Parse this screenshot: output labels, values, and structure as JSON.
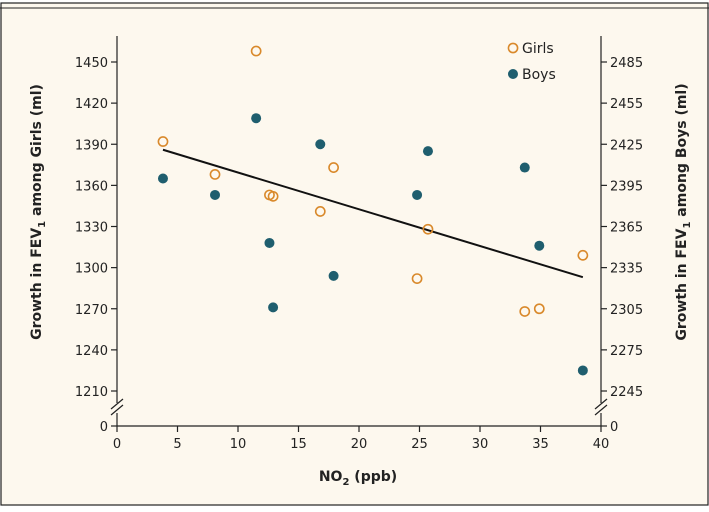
{
  "colors": {
    "background": "#fdf8ee",
    "girls": "#d9892b",
    "boys": "#1f5e6e",
    "line": "#111111",
    "axis": "#222222"
  },
  "chart_data": {
    "type": "scatter",
    "xlabel_main": "NO",
    "xlabel_sub": "2",
    "xlabel_rest": " (ppb)",
    "ylabel_left_main": "Growth in FEV",
    "ylabel_left_sub": "1",
    "ylabel_left_rest": " among Girls (ml)",
    "ylabel_right_main": "Growth in FEV",
    "ylabel_right_sub": "1",
    "ylabel_right_rest": " among Boys (ml)",
    "xlim": [
      0,
      40
    ],
    "x_ticks": [
      "0",
      "5",
      "10",
      "15",
      "20",
      "25",
      "30",
      "35",
      "40"
    ],
    "ylim_left": [
      1210,
      1450
    ],
    "y_ticks_left": [
      "1210",
      "1240",
      "1270",
      "1300",
      "1330",
      "1360",
      "1390",
      "1420",
      "1450"
    ],
    "ylim_right": [
      2245,
      2485
    ],
    "y_ticks_right": [
      "2245",
      "2275",
      "2305",
      "2335",
      "2365",
      "2395",
      "2425",
      "2455",
      "2485"
    ],
    "axis_break_label_left": "0",
    "axis_break_label_right": "0",
    "legend_position": "top-right",
    "series": [
      {
        "name": "Girls",
        "marker": "open-circle",
        "axis": "left",
        "points": [
          {
            "x": 3.8,
            "y": 1392
          },
          {
            "x": 8.1,
            "y": 1368
          },
          {
            "x": 11.5,
            "y": 1458
          },
          {
            "x": 12.6,
            "y": 1353
          },
          {
            "x": 12.9,
            "y": 1352
          },
          {
            "x": 16.8,
            "y": 1341
          },
          {
            "x": 17.9,
            "y": 1373
          },
          {
            "x": 24.8,
            "y": 1292
          },
          {
            "x": 25.7,
            "y": 1328
          },
          {
            "x": 33.7,
            "y": 1268
          },
          {
            "x": 34.9,
            "y": 1270
          },
          {
            "x": 38.5,
            "y": 1309
          }
        ]
      },
      {
        "name": "Boys",
        "marker": "filled-circle",
        "axis": "right",
        "points": [
          {
            "x": 3.8,
            "y": 2400
          },
          {
            "x": 8.1,
            "y": 2388
          },
          {
            "x": 11.5,
            "y": 2444
          },
          {
            "x": 12.6,
            "y": 2353
          },
          {
            "x": 12.9,
            "y": 2306
          },
          {
            "x": 16.8,
            "y": 2425
          },
          {
            "x": 17.9,
            "y": 2329
          },
          {
            "x": 24.8,
            "y": 2388
          },
          {
            "x": 25.7,
            "y": 2420
          },
          {
            "x": 33.7,
            "y": 2408
          },
          {
            "x": 34.9,
            "y": 2351
          },
          {
            "x": 38.5,
            "y": 2260
          }
        ]
      }
    ],
    "trend_line": {
      "axis": "left",
      "x": [
        3.8,
        38.5
      ],
      "y": [
        1386,
        1293
      ]
    }
  }
}
